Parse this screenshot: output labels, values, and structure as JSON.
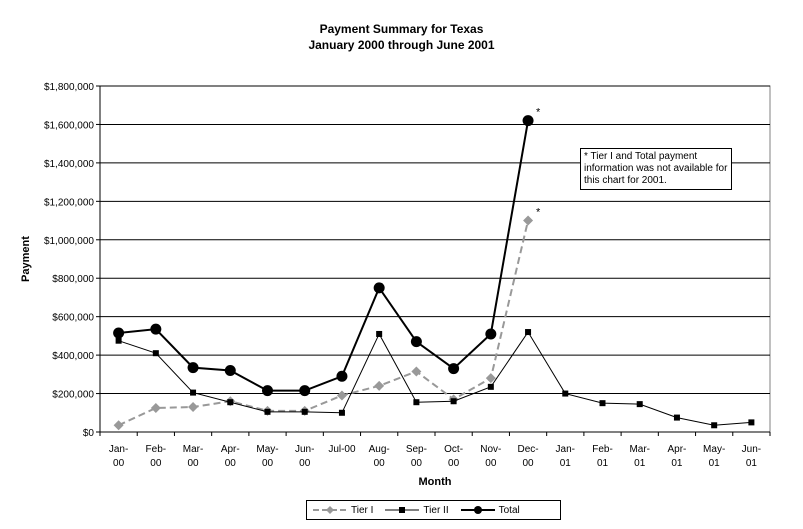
{
  "chart_data": {
    "type": "line",
    "title": "Payment Summary for Texas",
    "subtitle": "January 2000 through June 2001",
    "xlabel": "Month",
    "ylabel": "Payment",
    "ylim": [
      0,
      1800000
    ],
    "yticks": [
      "$0",
      "$200,000",
      "$400,000",
      "$600,000",
      "$800,000",
      "$1,000,000",
      "$1,200,000",
      "$1,400,000",
      "$1,600,000",
      "$1,800,000"
    ],
    "categories": [
      [
        "Jan-",
        "00"
      ],
      [
        "Feb-",
        "00"
      ],
      [
        "Mar-",
        "00"
      ],
      [
        "Apr-",
        "00"
      ],
      [
        "May-",
        "00"
      ],
      [
        "Jun-",
        "00"
      ],
      [
        "Jul-00",
        ""
      ],
      [
        "Aug-",
        "00"
      ],
      [
        "Sep-",
        "00"
      ],
      [
        "Oct-",
        "00"
      ],
      [
        "Nov-",
        "00"
      ],
      [
        "Dec-",
        "00"
      ],
      [
        "Jan-",
        "01"
      ],
      [
        "Feb-",
        "01"
      ],
      [
        "Mar-",
        "01"
      ],
      [
        "Apr-",
        "01"
      ],
      [
        "May-",
        "01"
      ],
      [
        "Jun-",
        "01"
      ]
    ],
    "grid": "horizontal",
    "legend_position": "bottom",
    "series": [
      {
        "name": "Tier I",
        "style": "dashed",
        "marker": "diamond",
        "color": "#999999",
        "values": [
          35000,
          125000,
          130000,
          160000,
          110000,
          110000,
          190000,
          240000,
          315000,
          170000,
          280000,
          1100000,
          null,
          null,
          null,
          null,
          null,
          null
        ]
      },
      {
        "name": "Tier II",
        "style": "solid-thin",
        "marker": "square",
        "color": "#000000",
        "values": [
          475000,
          410000,
          205000,
          155000,
          105000,
          105000,
          100000,
          510000,
          155000,
          160000,
          235000,
          520000,
          200000,
          150000,
          145000,
          75000,
          35000,
          50000
        ]
      },
      {
        "name": "Total",
        "style": "solid-thick",
        "marker": "circle",
        "color": "#000000",
        "values": [
          515000,
          535000,
          335000,
          320000,
          215000,
          215000,
          290000,
          750000,
          470000,
          330000,
          510000,
          1620000,
          null,
          null,
          null,
          null,
          null,
          null
        ]
      }
    ],
    "annotations": [
      {
        "text": "*",
        "series": "Total",
        "index": 11
      },
      {
        "text": "*",
        "series": "Tier I",
        "index": 11
      }
    ],
    "note": "* Tier I and Total payment information was not available for this chart for 2001."
  }
}
